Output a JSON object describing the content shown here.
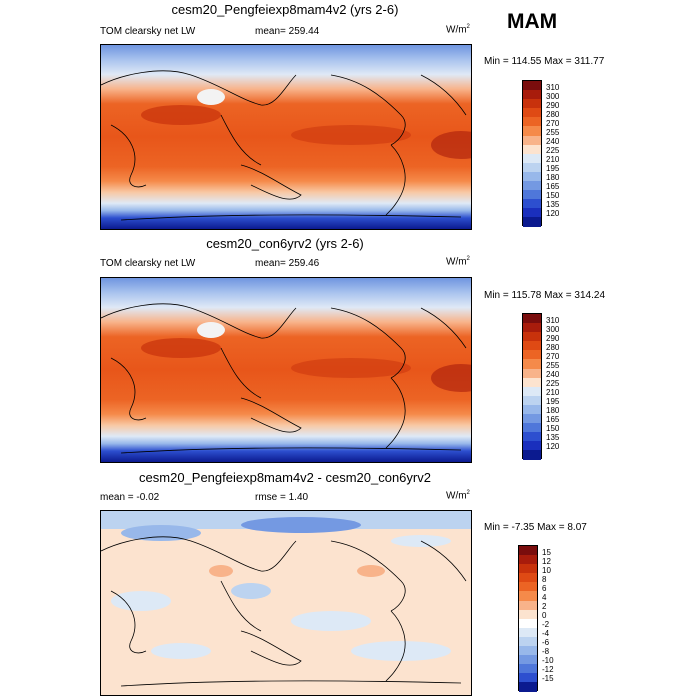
{
  "season": "MAM",
  "panels": [
    {
      "title": "cesm20_Pengfeiexp8mam4v2 (yrs 2-6)",
      "left": "TOM clearsky net LW",
      "mid": "mean= 259.44",
      "units": "W/m",
      "units_sup": "2",
      "minmax": "Min = 114.55 Max = 311.77",
      "levels": [
        "310",
        "300",
        "290",
        "280",
        "270",
        "255",
        "240",
        "225",
        "210",
        "195",
        "180",
        "165",
        "150",
        "135",
        "120"
      ]
    },
    {
      "title": "cesm20_con6yrv2 (yrs 2-6)",
      "left": "TOM clearsky net LW",
      "mid": "mean= 259.46",
      "units": "W/m",
      "units_sup": "2",
      "minmax": "Min = 115.78 Max = 314.24",
      "levels": [
        "310",
        "300",
        "290",
        "280",
        "270",
        "255",
        "240",
        "225",
        "210",
        "195",
        "180",
        "165",
        "150",
        "135",
        "120"
      ]
    },
    {
      "title": "cesm20_Pengfeiexp8mam4v2 - cesm20_con6yrv2",
      "left": "mean =  -0.02",
      "mid": "rmse =   1.40",
      "units": "W/m",
      "units_sup": "2",
      "minmax": "Min =  -7.35 Max =   8.07",
      "levels": [
        "15",
        "12",
        "10",
        "8",
        "6",
        "4",
        "2",
        "0",
        "-2",
        "-4",
        "-6",
        "-8",
        "-10",
        "-12",
        "-15"
      ]
    }
  ],
  "colors": {
    "abs_scale": [
      "#7a0d0d",
      "#a81c0c",
      "#c8320c",
      "#df4a14",
      "#ec6424",
      "#f58a4a",
      "#f8b38a",
      "#fce3cf",
      "#dde9f6",
      "#bcd3f0",
      "#98b8ea",
      "#7499e2",
      "#4f77da",
      "#2d4fcf",
      "#1a2fbd",
      "#0b1a8f"
    ],
    "diff_scale": [
      "#7a0d0d",
      "#a81c0c",
      "#c8320c",
      "#df4a14",
      "#ec6424",
      "#f58a4a",
      "#f8b38a",
      "#fce3cf",
      "#ffffff",
      "#dde9f6",
      "#bcd3f0",
      "#98b8ea",
      "#7499e2",
      "#4f77da",
      "#2d4fcf",
      "#0b1a8f"
    ]
  }
}
